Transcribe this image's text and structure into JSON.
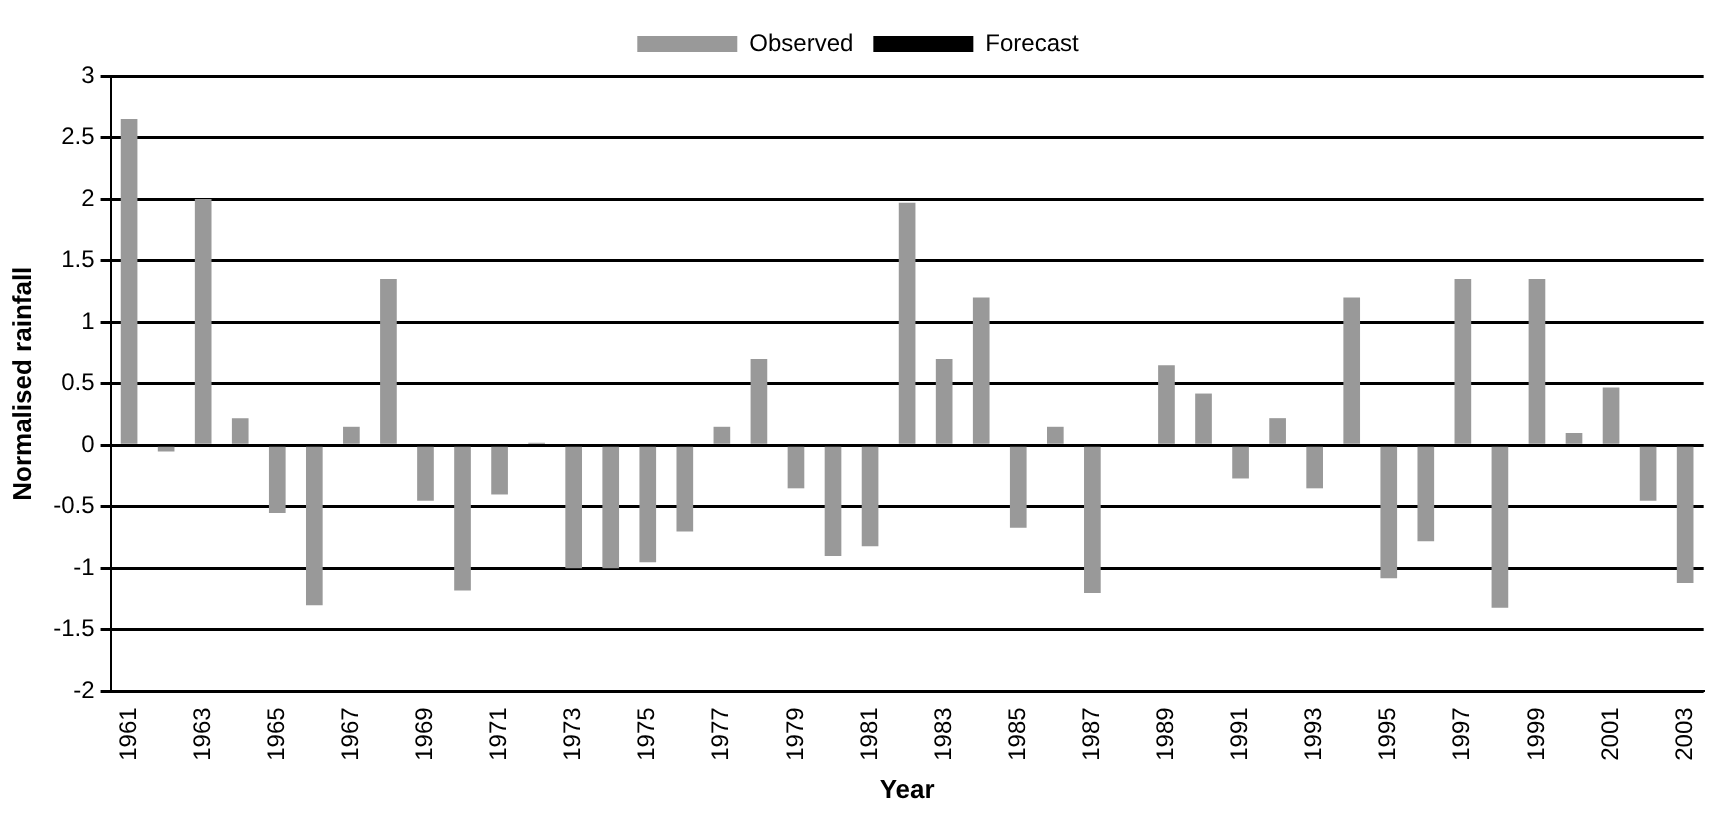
{
  "chart_data": {
    "type": "bar",
    "xlabel": "Year",
    "ylabel": "Normalised rainfall",
    "categories": [
      "1961",
      null,
      "1963",
      null,
      "1965",
      null,
      "1967",
      null,
      "1969",
      null,
      "1971",
      null,
      "1973",
      null,
      "1975",
      null,
      "1977",
      null,
      "1979",
      null,
      "1981",
      null,
      "1983",
      null,
      "1985",
      null,
      "1987",
      null,
      "1989",
      null,
      "1991",
      null,
      "1993",
      null,
      "1995",
      null,
      "1997",
      null,
      "1999",
      null,
      "2001",
      null,
      "2003"
    ],
    "series": [
      {
        "name": "Observed",
        "color": "#999999",
        "values": [
          2.65,
          -0.05,
          2.0,
          0.22,
          -0.55,
          -1.3,
          0.15,
          1.35,
          -0.45,
          -1.18,
          -0.4,
          0.02,
          -1.0,
          -1.0,
          -0.95,
          -0.7,
          0.15,
          0.7,
          -0.35,
          -0.9,
          -0.82,
          1.97,
          0.7,
          1.2,
          -0.67,
          0.15,
          -1.2,
          0,
          0.65,
          0.42,
          -0.27,
          0.22,
          -0.35,
          1.2,
          -1.08,
          -0.78,
          1.35,
          -1.32,
          1.35,
          0.1,
          0.47,
          -0.45,
          -1.12
        ]
      },
      {
        "name": "Forecast",
        "type": "line",
        "color": "#000000",
        "values": [
          null,
          null,
          null,
          null,
          null,
          null,
          null,
          null,
          null,
          null,
          null,
          null,
          null,
          null,
          null,
          null,
          null,
          null,
          null,
          null,
          null,
          null,
          null,
          null,
          null,
          null,
          null,
          null,
          null,
          null,
          null,
          null,
          null,
          null,
          null,
          null,
          null,
          null,
          null,
          null,
          null,
          null,
          null
        ]
      }
    ],
    "ylim": [
      -2,
      3
    ],
    "yticks": [
      -2,
      -1.5,
      -1,
      -0.5,
      0,
      0.5,
      1,
      1.5,
      2,
      2.5,
      3
    ],
    "grid": "y",
    "legend": "top"
  }
}
